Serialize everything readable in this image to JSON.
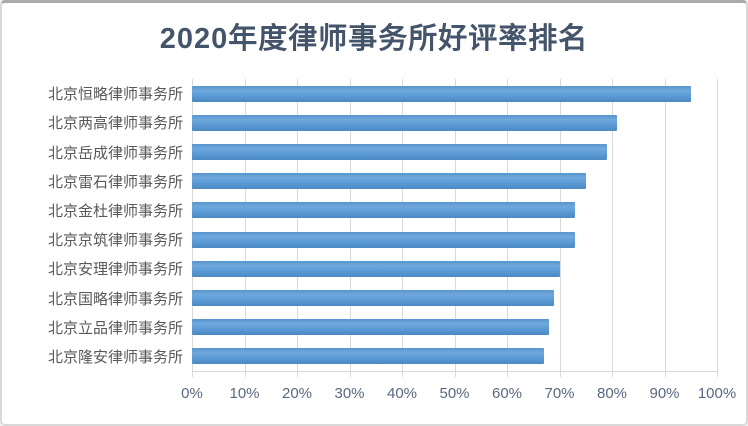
{
  "chart_data": {
    "type": "bar",
    "orientation": "horizontal",
    "title": "2020年度律师事务所好评率排名",
    "categories": [
      "北京恒略律师事务所",
      "北京两高律师事务所",
      "北京岳成律师事务所",
      "北京雷石律师事务所",
      "北京金杜律师事务所",
      "北京京筑律师事务所",
      "北京安理律师事务所",
      "北京国略律师事务所",
      "北京立品律师事务所",
      "北京隆安律师事务所"
    ],
    "values": [
      95,
      81,
      79,
      75,
      73,
      73,
      70,
      69,
      68,
      67
    ],
    "value_unit": "%",
    "x_ticks": [
      "0%",
      "10%",
      "20%",
      "30%",
      "40%",
      "50%",
      "60%",
      "70%",
      "80%",
      "90%",
      "100%"
    ],
    "xlim": [
      0,
      100
    ],
    "grid": true,
    "legend": false,
    "colors": {
      "bar": "#5B9BD5",
      "bar_gradient_top": "#5795CD",
      "bar_gradient_light": "#6FA8DD",
      "bar_gradient_bottom": "#4C88C2",
      "grid": "#D9D9D9",
      "title": "#44546A",
      "category_label": "#595959",
      "tick_label": "#596880",
      "background": "#FFFFFF",
      "border": "#D9D9D9"
    }
  }
}
